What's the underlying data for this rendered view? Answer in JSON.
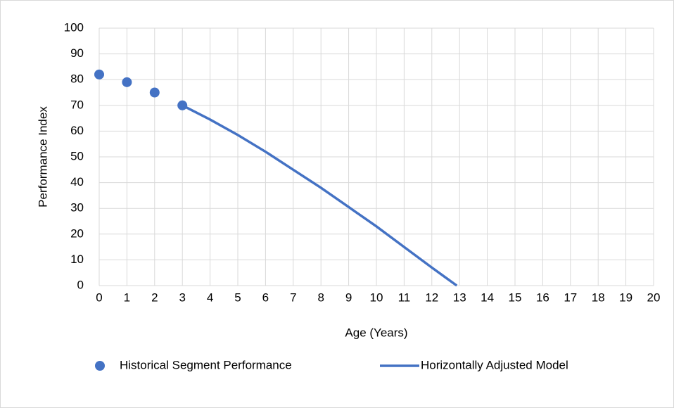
{
  "chart_data": {
    "type": "scatter",
    "x_label": "Age (Years)",
    "y_label": "Performance Index",
    "xlim": [
      0,
      20
    ],
    "ylim": [
      0,
      100
    ],
    "xticks": [
      0,
      1,
      2,
      3,
      4,
      5,
      6,
      7,
      8,
      9,
      10,
      11,
      12,
      13,
      14,
      15,
      16,
      17,
      18,
      19,
      20
    ],
    "yticks": [
      0,
      10,
      20,
      30,
      40,
      50,
      60,
      70,
      80,
      90,
      100
    ],
    "grid": true,
    "legend": "bottom",
    "series": [
      {
        "name": "Historical Segment Performance",
        "color": "#4472c4",
        "style": "markers",
        "x": [
          0,
          1,
          2,
          3
        ],
        "values": [
          82,
          79,
          75,
          70
        ]
      },
      {
        "name": "Horizontally Adjusted Model",
        "color": "#4472c4",
        "style": "line",
        "x": [
          3,
          4,
          5,
          6,
          7,
          8,
          9,
          10,
          11,
          12,
          12.9
        ],
        "values": [
          70,
          64.5,
          58.5,
          52,
          45,
          38,
          30.5,
          23,
          15,
          7,
          0
        ]
      }
    ]
  }
}
